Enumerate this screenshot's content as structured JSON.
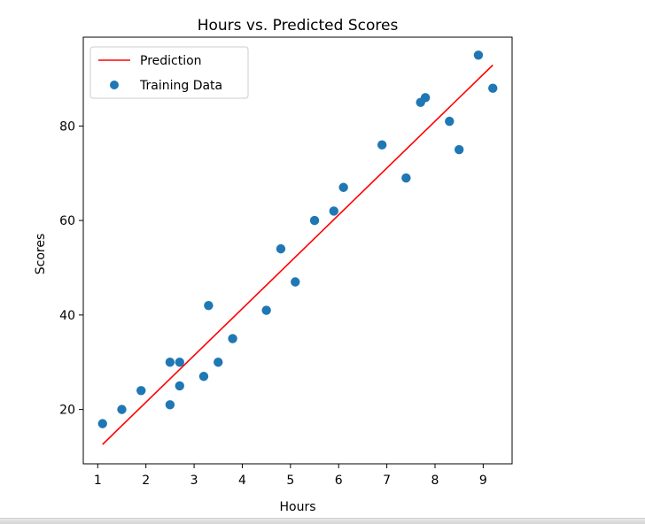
{
  "chart_data": {
    "type": "scatter",
    "title": "Hours vs. Predicted Scores",
    "xlabel": "Hours",
    "ylabel": "Scores",
    "xlim": [
      0.7,
      9.6
    ],
    "ylim": [
      8.5,
      98.8
    ],
    "xticks": [
      "1",
      "2",
      "3",
      "4",
      "5",
      "6",
      "7",
      "8",
      "9"
    ],
    "yticks": [
      "20",
      "40",
      "60",
      "80"
    ],
    "legend_position": "top-left",
    "grid": false,
    "series": [
      {
        "name": "Prediction",
        "kind": "line",
        "color": "#ff0000",
        "x": [
          1.1,
          9.2
        ],
        "y": [
          12.6,
          92.9
        ]
      },
      {
        "name": "Training Data",
        "kind": "scatter",
        "color": "#1f77b4",
        "x": [
          1.1,
          1.5,
          1.9,
          2.5,
          2.5,
          2.7,
          2.7,
          3.2,
          3.3,
          3.5,
          3.8,
          4.5,
          4.8,
          5.1,
          5.5,
          5.9,
          6.1,
          6.9,
          7.4,
          7.7,
          7.8,
          8.3,
          8.5,
          8.9,
          9.2
        ],
        "y": [
          17,
          20,
          24,
          21,
          30,
          25,
          30,
          27,
          42,
          30,
          35,
          41,
          54,
          47,
          60,
          62,
          67,
          76,
          69,
          85,
          86,
          81,
          75,
          95,
          88
        ]
      }
    ]
  }
}
